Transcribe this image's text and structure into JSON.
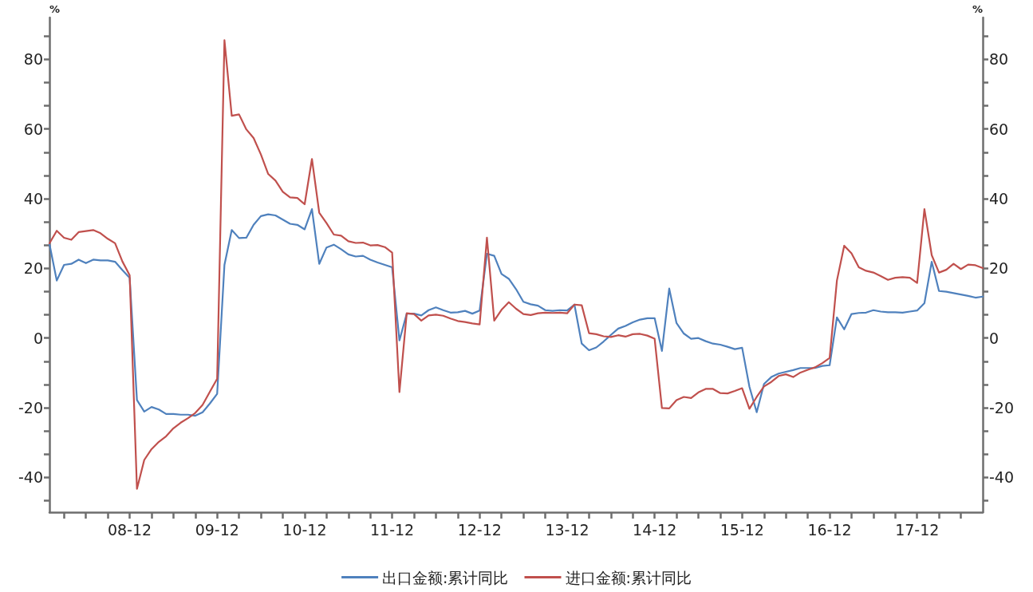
{
  "chart_data": {
    "type": "line",
    "ylabel": "%",
    "y2label": "%",
    "legend": "bottom",
    "marker": "none",
    "line_style": "solid",
    "grid": false,
    "xlim": [
      "2008-01",
      "2018-09"
    ],
    "x": [
      "2008-01",
      "2008-02",
      "2008-03",
      "2008-04",
      "2008-05",
      "2008-06",
      "2008-07",
      "2008-08",
      "2008-09",
      "2008-10",
      "2008-11",
      "2008-12",
      "2009-01",
      "2009-02",
      "2009-03",
      "2009-04",
      "2009-05",
      "2009-06",
      "2009-07",
      "2009-08",
      "2009-09",
      "2009-10",
      "2009-11",
      "2009-12",
      "2010-01",
      "2010-02",
      "2010-03",
      "2010-04",
      "2010-05",
      "2010-06",
      "2010-07",
      "2010-08",
      "2010-09",
      "2010-10",
      "2010-11",
      "2010-12",
      "2011-01",
      "2011-02",
      "2011-03",
      "2011-04",
      "2011-05",
      "2011-06",
      "2011-07",
      "2011-08",
      "2011-09",
      "2011-10",
      "2011-11",
      "2011-12",
      "2012-01",
      "2012-02",
      "2012-03",
      "2012-04",
      "2012-05",
      "2012-06",
      "2012-07",
      "2012-08",
      "2012-09",
      "2012-10",
      "2012-11",
      "2012-12",
      "2013-01",
      "2013-02",
      "2013-03",
      "2013-04",
      "2013-05",
      "2013-06",
      "2013-07",
      "2013-08",
      "2013-09",
      "2013-10",
      "2013-11",
      "2013-12",
      "2014-01",
      "2014-02",
      "2014-03",
      "2014-04",
      "2014-05",
      "2014-06",
      "2014-07",
      "2014-08",
      "2014-09",
      "2014-10",
      "2014-11",
      "2014-12",
      "2015-01",
      "2015-02",
      "2015-03",
      "2015-04",
      "2015-05",
      "2015-06",
      "2015-07",
      "2015-08",
      "2015-09",
      "2015-10",
      "2015-11",
      "2015-12",
      "2016-01",
      "2016-02",
      "2016-03",
      "2016-04",
      "2016-05",
      "2016-06",
      "2016-07",
      "2016-08",
      "2016-09",
      "2016-10",
      "2016-11",
      "2016-12",
      "2017-01",
      "2017-02",
      "2017-03",
      "2017-04",
      "2017-05",
      "2017-06",
      "2017-07",
      "2017-08",
      "2017-09",
      "2017-10",
      "2017-11",
      "2017-12",
      "2018-01",
      "2018-02",
      "2018-03",
      "2018-04",
      "2018-05",
      "2018-06",
      "2018-07",
      "2018-08",
      "2018-09"
    ],
    "xticks": [
      {
        "value": "2008-03",
        "label": null
      },
      {
        "value": "2008-06",
        "label": null
      },
      {
        "value": "2008-09",
        "label": null
      },
      {
        "value": "2008-12",
        "label": "08-12"
      },
      {
        "value": "2009-03",
        "label": null
      },
      {
        "value": "2009-06",
        "label": null
      },
      {
        "value": "2009-09",
        "label": null
      },
      {
        "value": "2009-12",
        "label": "09-12"
      },
      {
        "value": "2010-03",
        "label": null
      },
      {
        "value": "2010-06",
        "label": null
      },
      {
        "value": "2010-09",
        "label": null
      },
      {
        "value": "2010-12",
        "label": "10-12"
      },
      {
        "value": "2011-03",
        "label": null
      },
      {
        "value": "2011-06",
        "label": null
      },
      {
        "value": "2011-09",
        "label": null
      },
      {
        "value": "2011-12",
        "label": "11-12"
      },
      {
        "value": "2012-03",
        "label": null
      },
      {
        "value": "2012-06",
        "label": null
      },
      {
        "value": "2012-09",
        "label": null
      },
      {
        "value": "2012-12",
        "label": "12-12"
      },
      {
        "value": "2013-03",
        "label": null
      },
      {
        "value": "2013-06",
        "label": null
      },
      {
        "value": "2013-09",
        "label": null
      },
      {
        "value": "2013-12",
        "label": "13-12"
      },
      {
        "value": "2014-03",
        "label": null
      },
      {
        "value": "2014-06",
        "label": null
      },
      {
        "value": "2014-09",
        "label": null
      },
      {
        "value": "2014-12",
        "label": "14-12"
      },
      {
        "value": "2015-03",
        "label": null
      },
      {
        "value": "2015-06",
        "label": null
      },
      {
        "value": "2015-09",
        "label": null
      },
      {
        "value": "2015-12",
        "label": "15-12"
      },
      {
        "value": "2016-03",
        "label": null
      },
      {
        "value": "2016-06",
        "label": null
      },
      {
        "value": "2016-09",
        "label": null
      },
      {
        "value": "2016-12",
        "label": "16-12"
      },
      {
        "value": "2017-03",
        "label": null
      },
      {
        "value": "2017-06",
        "label": null
      },
      {
        "value": "2017-09",
        "label": null
      },
      {
        "value": "2017-12",
        "label": "17-12"
      },
      {
        "value": "2018-03",
        "label": null
      },
      {
        "value": "2018-06",
        "label": null
      }
    ],
    "ylim": [
      -50,
      92
    ],
    "yticks": [
      -40,
      -20,
      0,
      20,
      40,
      60,
      80,
      {
        "value": -46.67,
        "label": null
      },
      {
        "value": -33.33,
        "label": null
      },
      {
        "value": -26.67,
        "label": null
      },
      {
        "value": -13.33,
        "label": null
      },
      {
        "value": -6.67,
        "label": null
      },
      {
        "value": 6.67,
        "label": null
      },
      {
        "value": 13.33,
        "label": null
      },
      {
        "value": 26.67,
        "label": null
      },
      {
        "value": 33.33,
        "label": null
      },
      {
        "value": 46.67,
        "label": null
      },
      {
        "value": 53.33,
        "label": null
      },
      {
        "value": 66.67,
        "label": null
      },
      {
        "value": 73.33,
        "label": null
      },
      {
        "value": 86.67,
        "label": null
      }
    ],
    "y2lim": [
      -50,
      92
    ],
    "y2ticks": [
      -40,
      -20,
      0,
      20,
      40,
      60,
      80,
      {
        "value": -46.67,
        "label": null
      },
      {
        "value": -33.33,
        "label": null
      },
      {
        "value": -26.67,
        "label": null
      },
      {
        "value": -13.33,
        "label": null
      },
      {
        "value": -6.67,
        "label": null
      },
      {
        "value": 6.67,
        "label": null
      },
      {
        "value": 13.33,
        "label": null
      },
      {
        "value": 26.67,
        "label": null
      },
      {
        "value": 33.33,
        "label": null
      },
      {
        "value": 46.67,
        "label": null
      },
      {
        "value": 53.33,
        "label": null
      },
      {
        "value": 66.67,
        "label": null
      },
      {
        "value": 73.33,
        "label": null
      },
      {
        "value": 86.67,
        "label": null
      }
    ],
    "series": [
      {
        "name": "出口金额:累计同比",
        "color": "#4f81bd",
        "values": [
          27,
          16.5,
          21,
          21.3,
          22.5,
          21.5,
          22.5,
          22.3,
          22.3,
          21.9,
          19.5,
          17.3,
          -17.8,
          -21.1,
          -19.8,
          -20.5,
          -21.8,
          -21.8,
          -22,
          -22,
          -22.3,
          -21.3,
          -18.8,
          -16,
          21,
          31,
          28.7,
          28.8,
          32.5,
          35,
          35.5,
          35.2,
          34,
          32.8,
          32.5,
          31.2,
          37,
          21.3,
          26,
          26.8,
          25.5,
          24,
          23.4,
          23.6,
          22.5,
          21.7,
          21,
          20.3,
          -0.7,
          7,
          7,
          6.5,
          8,
          8.8,
          8,
          7.3,
          7.4,
          7.8,
          7,
          7.9,
          24.2,
          23.6,
          18.4,
          17,
          14,
          10.4,
          9.7,
          9.3,
          8,
          7.8,
          8,
          7.9,
          9.6,
          -1.6,
          -3.5,
          -2.7,
          -1,
          0.9,
          2.7,
          3.5,
          4.5,
          5.3,
          5.7,
          5.7,
          -3.7,
          14.2,
          4.3,
          1.3,
          -0.2,
          0,
          -0.9,
          -1.6,
          -1.9,
          -2.5,
          -3.2,
          -2.8,
          -14,
          -21.3,
          -13.2,
          -11.2,
          -10.2,
          -9.7,
          -9.2,
          -8.6,
          -8.6,
          -8.6,
          -8,
          -7.8,
          5.9,
          2.5,
          6.9,
          7.2,
          7.3,
          8,
          7.6,
          7.4,
          7.4,
          7.3,
          7.6,
          7.9,
          10,
          21.9,
          13.5,
          13.3,
          12.9,
          12.5,
          12.1,
          11.6,
          11.9
        ]
      },
      {
        "name": "进口金额:累计同比",
        "color": "#c0504d",
        "values": [
          27.2,
          30.8,
          28.8,
          28.2,
          30.4,
          30.7,
          31,
          30.1,
          28.5,
          27.2,
          22,
          18,
          -43.3,
          -35,
          -31.9,
          -29.8,
          -28.2,
          -25.9,
          -24.3,
          -23,
          -21.5,
          -19.2,
          -15.4,
          -11.7,
          85.5,
          63.8,
          64.2,
          59.9,
          57.4,
          52.7,
          47.1,
          45.2,
          42,
          40.4,
          40.2,
          38.4,
          51.4,
          36,
          33,
          29.7,
          29.4,
          27.8,
          27.3,
          27.4,
          26.6,
          26.7,
          26.1,
          24.5,
          -15.5,
          7.1,
          6.9,
          5,
          6.5,
          6.7,
          6.4,
          5.6,
          4.9,
          4.6,
          4.2,
          3.9,
          28.8,
          5,
          8.1,
          10.3,
          8.4,
          6.9,
          6.6,
          7.1,
          7.3,
          7.2,
          7.3,
          7.1,
          9.6,
          9.4,
          1.4,
          1.1,
          0.5,
          0.3,
          0.8,
          0.4,
          1.1,
          1.2,
          0.7,
          -0.2,
          -20.1,
          -20.2,
          -17.8,
          -16.9,
          -17.2,
          -15.6,
          -14.6,
          -14.6,
          -15.8,
          -15.9,
          -15.2,
          -14.4,
          -20.3,
          -16.9,
          -13.9,
          -12.6,
          -10.9,
          -10.4,
          -11.2,
          -9.9,
          -9.1,
          -8.4,
          -7.2,
          -5.7,
          16.5,
          26.5,
          24.3,
          20.3,
          19.3,
          18.8,
          17.8,
          16.7,
          17.3,
          17.5,
          17.3,
          15.8,
          37,
          23.8,
          18.8,
          19.6,
          21.3,
          19.8,
          21.1,
          20.9,
          20.1
        ]
      }
    ]
  }
}
